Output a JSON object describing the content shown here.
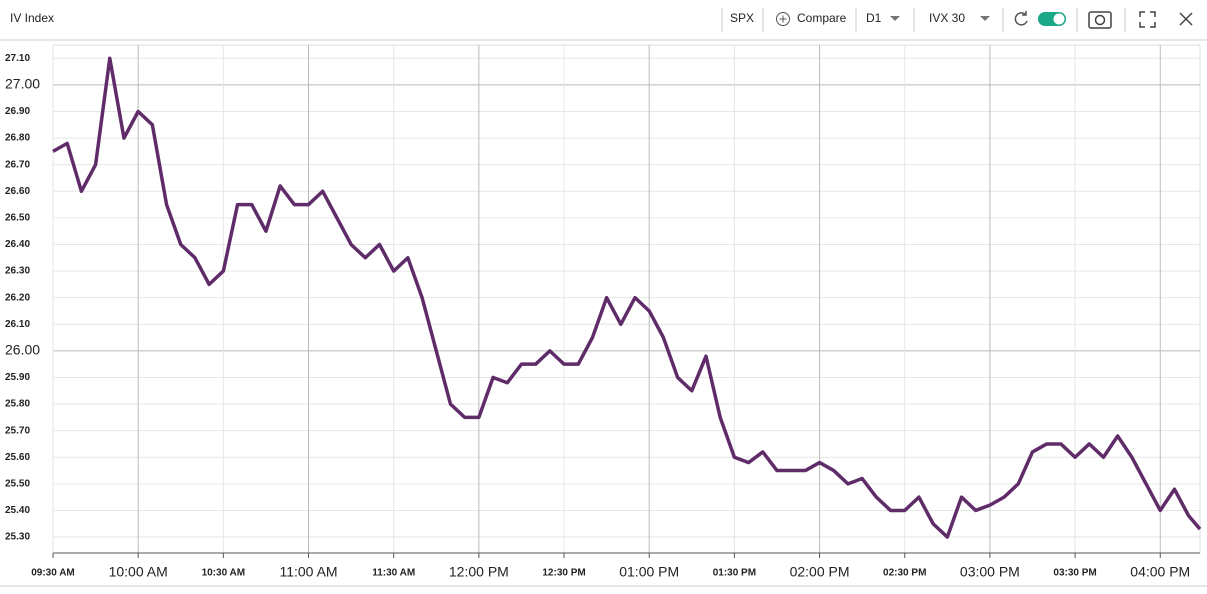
{
  "toolbar": {
    "symbol": "SPX",
    "compare": "Compare",
    "period": "D1",
    "measure": "IVX 30"
  },
  "chart_data": {
    "type": "line",
    "title": "IV Index",
    "x": [
      "09:30",
      "09:35",
      "09:40",
      "09:45",
      "09:50",
      "09:55",
      "10:00",
      "10:05",
      "10:10",
      "10:15",
      "10:20",
      "10:25",
      "10:30",
      "10:35",
      "10:40",
      "10:45",
      "10:50",
      "10:55",
      "11:00",
      "11:05",
      "11:10",
      "11:15",
      "11:20",
      "11:25",
      "11:30",
      "11:35",
      "11:40",
      "11:45",
      "11:50",
      "11:55",
      "12:00",
      "12:05",
      "12:10",
      "12:15",
      "12:20",
      "12:25",
      "12:30",
      "12:35",
      "12:40",
      "12:45",
      "12:50",
      "12:55",
      "13:00",
      "13:05",
      "13:10",
      "13:15",
      "13:20",
      "13:25",
      "13:30",
      "13:35",
      "13:40",
      "13:45",
      "13:50",
      "13:55",
      "14:00",
      "14:05",
      "14:10",
      "14:15",
      "14:20",
      "14:25",
      "14:30",
      "14:35",
      "14:40",
      "14:45",
      "14:50",
      "14:55",
      "15:00",
      "15:05",
      "15:10",
      "15:15",
      "15:20",
      "15:25",
      "15:30",
      "15:35",
      "15:40",
      "15:45",
      "15:50",
      "15:55",
      "16:00",
      "16:05",
      "16:10",
      "16:14"
    ],
    "series": [
      {
        "name": "IVX 30",
        "color": "#5f2b69",
        "values": [
          26.75,
          26.78,
          26.6,
          26.7,
          27.1,
          26.8,
          26.9,
          26.85,
          26.55,
          26.4,
          26.35,
          26.25,
          26.3,
          26.55,
          26.55,
          26.45,
          26.62,
          26.55,
          26.55,
          26.6,
          26.5,
          26.4,
          26.35,
          26.4,
          26.3,
          26.35,
          26.2,
          26.0,
          25.8,
          25.75,
          25.75,
          25.9,
          25.88,
          25.95,
          25.95,
          26.0,
          25.95,
          25.95,
          26.05,
          26.2,
          26.1,
          26.2,
          26.15,
          26.05,
          25.9,
          25.85,
          25.98,
          25.75,
          25.6,
          25.58,
          25.62,
          25.55,
          25.55,
          25.55,
          25.58,
          25.55,
          25.5,
          25.52,
          25.45,
          25.4,
          25.4,
          25.45,
          25.35,
          25.3,
          25.45,
          25.4,
          25.42,
          25.45,
          25.5,
          25.62,
          25.65,
          25.65,
          25.6,
          25.65,
          25.6,
          25.68,
          25.6,
          25.5,
          25.4,
          25.48,
          25.38,
          25.33
        ]
      }
    ],
    "xlim": [
      "09:30",
      "16:14"
    ],
    "xticks": [
      {
        "value": "09:30",
        "label": "09:30 AM"
      },
      {
        "value": "10:00",
        "label": "10:00 AM"
      },
      {
        "value": "10:30",
        "label": "10:30 AM"
      },
      {
        "value": "11:00",
        "label": "11:00 AM"
      },
      {
        "value": "11:30",
        "label": "11:30 AM"
      },
      {
        "value": "12:00",
        "label": "12:00 PM"
      },
      {
        "value": "12:30",
        "label": "12:30 PM"
      },
      {
        "value": "13:00",
        "label": "01:00 PM"
      },
      {
        "value": "13:30",
        "label": "01:30 PM"
      },
      {
        "value": "14:00",
        "label": "02:00 PM"
      },
      {
        "value": "14:30",
        "label": "02:30 PM"
      },
      {
        "value": "15:00",
        "label": "03:00 PM"
      },
      {
        "value": "15:30",
        "label": "03:30 PM"
      },
      {
        "value": "16:00",
        "label": "04:00 PM"
      }
    ],
    "ylim": [
      25.24,
      27.15
    ],
    "yticks": [
      {
        "value": 25.3,
        "label": "25.30"
      },
      {
        "value": 25.4,
        "label": "25.40"
      },
      {
        "value": 25.5,
        "label": "25.50"
      },
      {
        "value": 25.6,
        "label": "25.60"
      },
      {
        "value": 25.7,
        "label": "25.70"
      },
      {
        "value": 25.8,
        "label": "25.80"
      },
      {
        "value": 25.9,
        "label": "25.90"
      },
      {
        "value": 26,
        "label": "26.00"
      },
      {
        "value": 26.1,
        "label": "26.10"
      },
      {
        "value": 26.2,
        "label": "26.20"
      },
      {
        "value": 26.3,
        "label": "26.30"
      },
      {
        "value": 26.4,
        "label": "26.40"
      },
      {
        "value": 26.5,
        "label": "26.50"
      },
      {
        "value": 26.6,
        "label": "26.60"
      },
      {
        "value": 26.7,
        "label": "26.70"
      },
      {
        "value": 26.8,
        "label": "26.80"
      },
      {
        "value": 26.9,
        "label": "26.90"
      },
      {
        "value": 27,
        "label": "27.00"
      },
      {
        "value": 27.1,
        "label": "27.10"
      }
    ],
    "grid": true
  }
}
